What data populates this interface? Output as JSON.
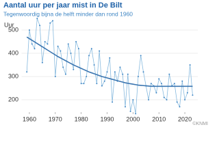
{
  "chart_data": {
    "type": "line",
    "title": "Aantal uur per jaar mist in De Bilt",
    "subtitle": "Tegenwoordig bijna de helft minder dan rond 1960",
    "y_label": "Uur",
    "credit": "©KNMI",
    "x": [
      1959,
      1960,
      1961,
      1962,
      1963,
      1964,
      1965,
      1966,
      1967,
      1968,
      1969,
      1970,
      1971,
      1972,
      1973,
      1974,
      1975,
      1976,
      1977,
      1978,
      1979,
      1980,
      1981,
      1982,
      1983,
      1984,
      1985,
      1986,
      1987,
      1988,
      1989,
      1990,
      1991,
      1992,
      1993,
      1994,
      1995,
      1996,
      1997,
      1998,
      1999,
      2000,
      2001,
      2002,
      2003,
      2004,
      2005,
      2006,
      2007,
      2008,
      2009,
      2010,
      2011,
      2012,
      2013,
      2014,
      2015,
      2016,
      2017,
      2018,
      2019,
      2020,
      2021,
      2022,
      2023
    ],
    "series": [
      {
        "color": "#86b9de",
        "marker_color": "#3f86c4",
        "values": [
          320,
          500,
          440,
          420,
          550,
          520,
          360,
          450,
          440,
          530,
          540,
          300,
          430,
          410,
          340,
          310,
          440,
          400,
          330,
          450,
          420,
          270,
          270,
          300,
          390,
          420,
          350,
          270,
          410,
          260,
          280,
          320,
          380,
          190,
          320,
          280,
          340,
          310,
          170,
          310,
          150,
          200,
          140,
          300,
          390,
          320,
          260,
          200,
          270,
          260,
          230,
          290,
          270,
          210,
          200,
          310,
          260,
          270,
          190,
          170,
          280,
          200,
          230,
          350,
          220
        ]
      },
      {
        "color": "#3a75b0",
        "values": [
          470,
          463,
          456,
          449,
          442,
          435,
          428,
          421,
          414,
          407,
          400,
          393,
          386,
          380,
          374,
          368,
          362,
          356,
          350,
          345,
          340,
          335,
          330,
          325,
          320,
          316,
          312,
          308,
          304,
          300,
          297,
          294,
          291,
          288,
          285,
          282,
          279,
          276,
          273,
          271,
          269,
          267,
          265,
          263,
          262,
          261,
          260,
          259,
          258,
          258,
          258,
          258,
          258,
          258,
          258,
          258,
          258,
          258,
          258,
          258,
          258,
          258,
          258,
          258,
          258
        ]
      }
    ],
    "xlim": [
      1957,
      2025
    ],
    "xticks": [
      1960,
      1970,
      1980,
      1990,
      2000,
      2010,
      2020
    ],
    "ylim": [
      140,
      560
    ],
    "yticks": [
      200,
      300,
      400,
      500
    ],
    "grid": true
  }
}
